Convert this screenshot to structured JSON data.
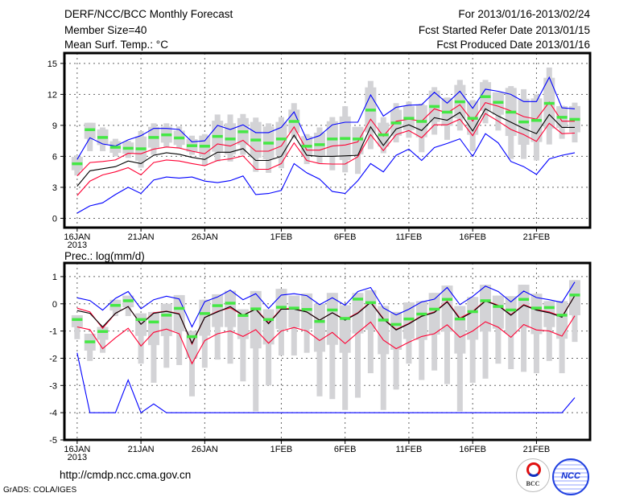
{
  "header": {
    "title": "DERF/NCC/BCC Monthly Forecast",
    "member_size": "Member Size=40",
    "variable": "Mean Surf. Temp.: °C",
    "period": "For 2013/01/16-2013/02/24",
    "started": "Fcst Started Refer Date 2013/01/15",
    "produced": "Fcst Produced Date 2013/01/16"
  },
  "footer": {
    "url": "http://cmdp.ncc.cma.gov.cn",
    "credit": "GrADS: COLA/IGES",
    "logo_bcc": "BCC",
    "logo_ncc": "NCC"
  },
  "colors": {
    "green": "#44e844",
    "gray": "#d3d3d6",
    "blue": "#0000ff",
    "red": "#ff0033",
    "black": "#000000"
  },
  "chart_data": [
    {
      "type": "line",
      "title": "Mean Surf. Temp.: °C",
      "xlabel": "",
      "ylabel": "",
      "x_tick_labels": [
        "16JAN",
        "21JAN",
        "26JAN",
        "1FEB",
        "6FEB",
        "11FEB",
        "16FEB",
        "21FEB"
      ],
      "x_tick_days": [
        0,
        5,
        10,
        16,
        21,
        26,
        31,
        36
      ],
      "x_year_label": "2013",
      "days": 40,
      "xlim": [
        -1,
        40.2
      ],
      "ylim": [
        -0.9,
        16
      ],
      "y_ticks": [
        0,
        3,
        6,
        9,
        12,
        15
      ],
      "grid": true,
      "ensemble_mean": [
        5.3,
        8.6,
        7.85,
        6.9,
        6.8,
        6.75,
        7.85,
        8.1,
        7.8,
        7.05,
        7.0,
        7.95,
        7.7,
        8.4,
        7.6,
        7.3,
        7.7,
        9.4,
        7.0,
        7.15,
        7.7,
        7.75,
        7.7,
        10.5,
        8.1,
        9.25,
        9.7,
        9.4,
        10.85,
        10.3,
        11.3,
        9.7,
        11.8,
        11.25,
        10.3,
        9.35,
        9.5,
        11.15,
        9.8,
        9.6
      ],
      "ensemble_max": [
        6.1,
        9.25,
        8.8,
        7.7,
        7.5,
        8.45,
        9.2,
        9.2,
        8.9,
        8.0,
        8.15,
        10.05,
        10.05,
        10.1,
        9.75,
        9.2,
        9.8,
        11.15,
        8.15,
        8.8,
        9.8,
        10.85,
        8.85,
        13.3,
        9.8,
        11.15,
        11.3,
        11.1,
        12.7,
        11.7,
        13.4,
        11.45,
        13.4,
        12.2,
        12.8,
        12.5,
        12.0,
        14.6,
        10.9,
        11.2
      ],
      "ensemble_min": [
        4.15,
        6.5,
        6.5,
        6.0,
        5.85,
        4.9,
        6.15,
        6.85,
        6.8,
        6.15,
        5.1,
        5.5,
        5.5,
        6.15,
        4.5,
        4.4,
        4.85,
        7.75,
        5.25,
        5.35,
        4.65,
        4.45,
        4.3,
        6.7,
        6.3,
        7.35,
        7.8,
        6.4,
        8.1,
        7.6,
        8.5,
        6.55,
        9.2,
        8.5,
        5.75,
        5.75,
        5.6,
        7.15,
        7.7,
        7.35
      ],
      "series": [
        {
          "name": "clim-max",
          "color": "#0000ff",
          "values": [
            5.7,
            7.8,
            7.2,
            7.0,
            7.6,
            8.0,
            8.7,
            8.7,
            8.6,
            7.4,
            7.5,
            9.0,
            8.6,
            9.05,
            8.3,
            8.3,
            8.8,
            10.3,
            7.6,
            8.0,
            9.05,
            9.3,
            9.3,
            11.95,
            9.9,
            10.75,
            10.95,
            11.0,
            12.2,
            11.15,
            12.3,
            10.65,
            12.5,
            12.3,
            12.0,
            11.3,
            11.3,
            13.65,
            10.7,
            10.6
          ]
        },
        {
          "name": "clim-upper",
          "color": "#ff0033",
          "values": [
            4.1,
            5.4,
            5.5,
            5.65,
            6.3,
            6.25,
            6.7,
            6.9,
            6.8,
            6.5,
            6.25,
            7.2,
            7.0,
            7.55,
            6.5,
            6.5,
            7.0,
            8.85,
            6.6,
            6.6,
            7.0,
            7.1,
            7.4,
            9.6,
            7.95,
            9.4,
            9.6,
            9.4,
            10.6,
            10.2,
            11.0,
            9.4,
            11.2,
            10.85,
            10.4,
            9.85,
            9.6,
            11.25,
            9.4,
            9.4
          ]
        },
        {
          "name": "clim-mean",
          "color": "#000000",
          "values": [
            3.1,
            4.6,
            4.8,
            5.0,
            5.55,
            5.3,
            6.1,
            6.35,
            6.2,
            5.9,
            5.7,
            6.4,
            6.4,
            6.75,
            5.6,
            5.6,
            6.0,
            8.05,
            6.1,
            6.0,
            6.0,
            6.05,
            6.1,
            8.85,
            7.05,
            8.65,
            9.05,
            8.5,
            9.75,
            9.5,
            10.25,
            8.45,
            10.6,
            9.9,
            9.3,
            8.7,
            8.2,
            10.05,
            8.8,
            8.8
          ]
        },
        {
          "name": "clim-lower",
          "color": "#ff0033",
          "values": [
            2.2,
            3.6,
            4.2,
            4.5,
            4.9,
            4.2,
            5.4,
            5.65,
            5.55,
            5.3,
            5.1,
            5.6,
            5.75,
            6.05,
            4.75,
            4.75,
            5.3,
            7.3,
            5.6,
            5.3,
            5.25,
            5.25,
            5.95,
            8.1,
            6.55,
            8.1,
            8.5,
            7.8,
            9.05,
            9.05,
            9.6,
            8.0,
            10.15,
            9.4,
            8.6,
            8.1,
            7.45,
            9.2,
            8.2,
            8.25
          ]
        },
        {
          "name": "clim-min",
          "color": "#0000ff",
          "values": [
            0.5,
            1.2,
            1.5,
            2.3,
            3.0,
            2.4,
            3.7,
            4.0,
            3.9,
            4.0,
            3.6,
            3.45,
            3.65,
            4.1,
            2.3,
            2.4,
            2.7,
            5.3,
            4.4,
            3.8,
            2.6,
            2.4,
            3.65,
            5.3,
            4.5,
            6.1,
            6.7,
            5.6,
            6.85,
            7.25,
            7.7,
            6.0,
            8.2,
            7.3,
            5.5,
            5.0,
            4.25,
            5.75,
            6.1,
            6.35
          ]
        }
      ]
    },
    {
      "type": "line",
      "title": "Prec.: log(mm/d)",
      "xlabel": "",
      "ylabel": "",
      "x_tick_labels": [
        "16JAN",
        "21JAN",
        "26JAN",
        "1FEB",
        "6FEB",
        "11FEB",
        "16FEB",
        "21FEB"
      ],
      "x_tick_days": [
        0,
        5,
        10,
        16,
        21,
        26,
        31,
        36
      ],
      "x_year_label": "2013",
      "days": 40,
      "xlim": [
        -1,
        40.2
      ],
      "ylim": [
        -5,
        1.5
      ],
      "y_ticks": [
        -5,
        -4,
        -3,
        -2,
        -1,
        0,
        1
      ],
      "grid": true,
      "ensemble_mean": [
        -0.57,
        -1.39,
        -1.01,
        -0.05,
        0.12,
        -0.57,
        -0.66,
        -0.41,
        -0.16,
        -1.2,
        -0.35,
        -0.06,
        0.03,
        -0.42,
        -0.18,
        -0.57,
        -0.12,
        -0.15,
        -0.2,
        -0.64,
        -0.22,
        -0.53,
        0.18,
        0.05,
        -0.59,
        -0.75,
        -0.55,
        -0.37,
        -0.19,
        0.17,
        -0.55,
        -0.28,
        0.12,
        -0.09,
        -0.22,
        0.17,
        -0.15,
        -0.13,
        -0.41,
        0.33
      ],
      "ensemble_max": [
        -0.42,
        -1.1,
        -0.85,
        0.15,
        0.3,
        -0.35,
        -0.3,
        0.0,
        0.32,
        -1.0,
        0.15,
        0.35,
        0.48,
        -0.2,
        0.47,
        -0.2,
        0.55,
        0.3,
        0.38,
        0.0,
        0.4,
        -0.05,
        0.4,
        0.5,
        -0.08,
        -0.3,
        0.05,
        0.1,
        0.4,
        0.67,
        -0.08,
        0.25,
        0.7,
        0.3,
        0.28,
        0.7,
        0.37,
        0.1,
        0.1,
        0.87
      ],
      "ensemble_min": [
        -1.3,
        -2.1,
        -1.8,
        -0.45,
        -0.45,
        -2.2,
        -2.9,
        -2.35,
        -2.25,
        -3.4,
        -2.35,
        -2.05,
        -2.2,
        -2.85,
        -3.95,
        -3.0,
        -1.9,
        -1.9,
        -1.8,
        -3.4,
        -3.5,
        -3.9,
        -3.45,
        -2.55,
        -3.9,
        -3.15,
        -2.2,
        -2.8,
        -2.45,
        -2.95,
        -3.95,
        -2.9,
        -2.75,
        -2.2,
        -2.4,
        -2.5,
        -2.55,
        -2.1,
        -2.55,
        -1.4
      ],
      "series": [
        {
          "name": "clim-max",
          "color": "#0000ff",
          "values": [
            0.22,
            0.12,
            -0.23,
            0.2,
            0.45,
            -0.18,
            0.15,
            0.28,
            0.18,
            -0.85,
            0.08,
            0.25,
            0.5,
            0.15,
            0.37,
            -0.17,
            0.32,
            0.37,
            0.3,
            -0.03,
            0.22,
            -0.05,
            0.45,
            0.6,
            -0.15,
            -0.41,
            -0.2,
            0.07,
            0.17,
            0.6,
            -0.03,
            0.27,
            0.65,
            0.45,
            0.07,
            0.47,
            0.23,
            0.15,
            0.05,
            0.8
          ]
        },
        {
          "name": "clim-upper",
          "color": "#ff0033",
          "values": [
            -0.16,
            -0.3,
            -0.9,
            -0.35,
            -0.1,
            -0.75,
            -0.33,
            -0.27,
            -0.36,
            -1.48,
            -0.5,
            -0.28,
            -0.15,
            -0.42,
            -0.18,
            -0.7,
            -0.18,
            -0.17,
            -0.3,
            -0.6,
            -0.33,
            -0.58,
            -0.33,
            0.07,
            -0.54,
            -0.94,
            -0.72,
            -0.44,
            -0.3,
            0.09,
            -0.52,
            -0.28,
            0.12,
            -0.05,
            -0.4,
            -0.03,
            -0.21,
            -0.3,
            -0.47,
            0.3
          ]
        },
        {
          "name": "clim-mean",
          "color": "#000000",
          "values": [
            -0.25,
            -0.35,
            -0.85,
            -0.35,
            -0.1,
            -0.75,
            -0.35,
            -0.28,
            -0.38,
            -1.45,
            -0.5,
            -0.3,
            -0.1,
            -0.42,
            -0.2,
            -0.73,
            -0.2,
            -0.2,
            -0.3,
            -0.6,
            -0.33,
            -0.6,
            -0.35,
            0.05,
            -0.56,
            -0.96,
            -0.74,
            -0.46,
            -0.32,
            0.07,
            -0.56,
            -0.3,
            0.1,
            -0.07,
            -0.42,
            -0.05,
            -0.23,
            -0.33,
            -0.49,
            0.3
          ]
        },
        {
          "name": "clim-lower",
          "color": "#ff0033",
          "values": [
            -0.85,
            -0.95,
            -1.65,
            -1.25,
            -0.9,
            -1.55,
            -1.05,
            -0.93,
            -1.1,
            -2.2,
            -1.35,
            -1.1,
            -1.0,
            -1.2,
            -0.95,
            -1.45,
            -1.0,
            -0.87,
            -1.0,
            -1.35,
            -1.05,
            -1.46,
            -1.06,
            -0.67,
            -1.33,
            -1.65,
            -1.41,
            -1.2,
            -1.1,
            -0.77,
            -1.23,
            -1.0,
            -0.66,
            -0.86,
            -1.23,
            -0.76,
            -0.96,
            -1.0,
            -1.19,
            -0.44
          ]
        },
        {
          "name": "clim-min",
          "color": "#0000ff",
          "values": [
            -1.8,
            -4,
            -4,
            -4,
            -2.8,
            -4,
            -3.68,
            -4,
            -4,
            -4,
            -4,
            -4,
            -4,
            -4,
            -4,
            -4,
            -4,
            -4,
            -4,
            -4,
            -4,
            -4,
            -4,
            -4,
            -4,
            -4,
            -4,
            -4,
            -4,
            -4,
            -4,
            -4,
            -4,
            -4,
            -4,
            -4,
            -4,
            -4,
            -4,
            -3.45
          ]
        }
      ]
    }
  ]
}
